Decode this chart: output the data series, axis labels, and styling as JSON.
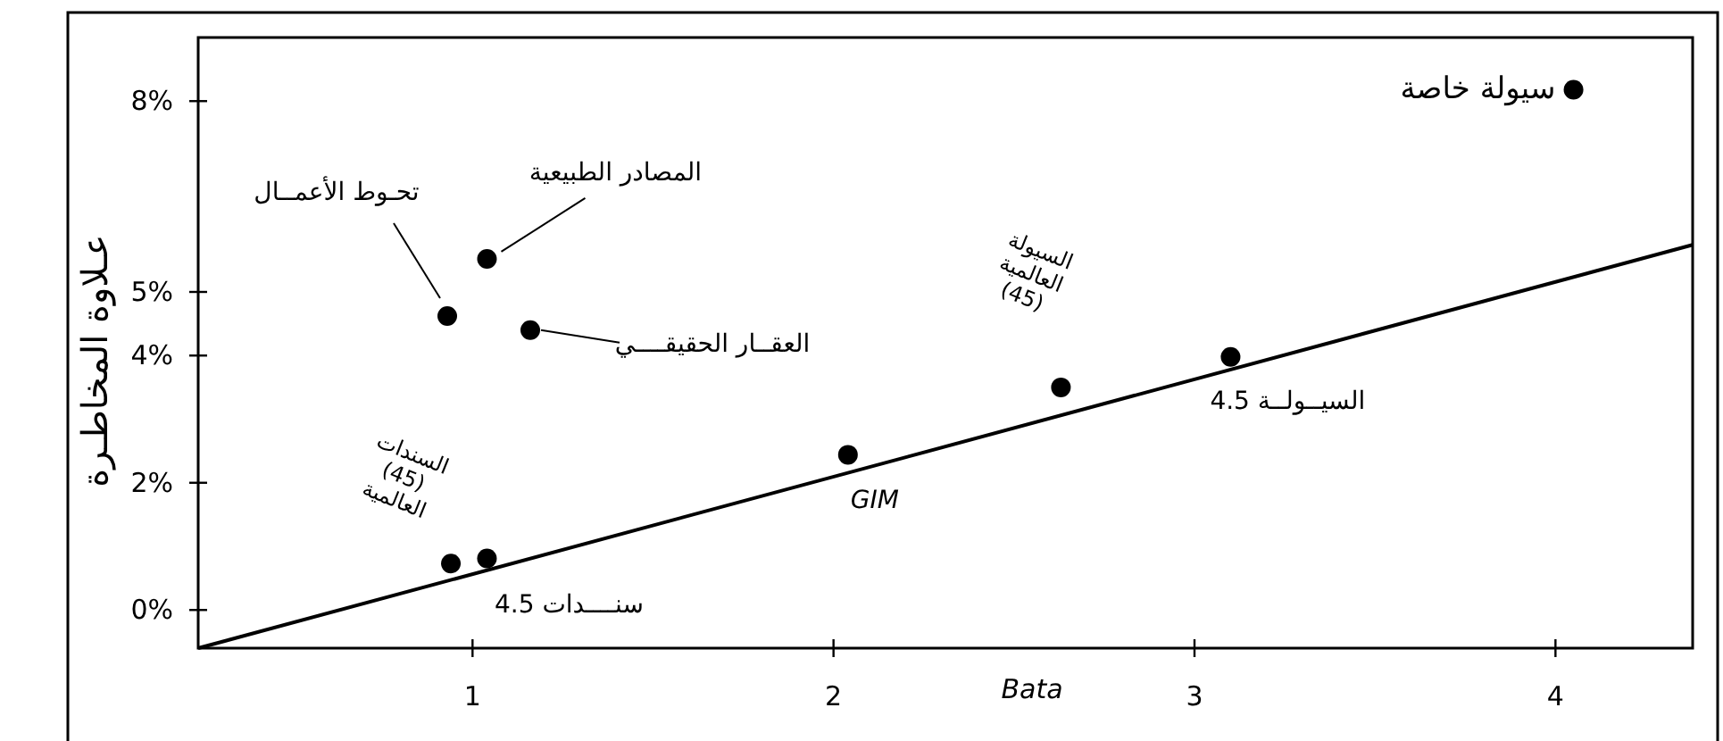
{
  "chart_data": {
    "type": "scatter",
    "xlabel": "Bata",
    "ylabel": "عـلاوة المخاطـرة",
    "xlim": [
      0.24,
      4.38
    ],
    "ylim": [
      -0.6,
      9.0
    ],
    "xticks": [
      1,
      2,
      3,
      4
    ],
    "yticks": [
      {
        "value": 0,
        "label": "0%"
      },
      {
        "value": 2,
        "label": "2%"
      },
      {
        "value": 4,
        "label": "4%"
      },
      {
        "value": 5,
        "label": "5%"
      },
      {
        "value": 8,
        "label": "8%"
      }
    ],
    "grid": false,
    "marker": "circle",
    "series": [
      {
        "type": "scatter",
        "color": "#000000",
        "x": [
          0.93,
          1.04,
          1.16,
          0.94,
          1.04,
          2.04,
          2.63,
          3.1,
          4.05
        ],
        "values": [
          4.62,
          5.52,
          4.4,
          0.73,
          0.81,
          2.44,
          3.5,
          3.98,
          8.18
        ]
      },
      {
        "type": "line",
        "color": "#000000",
        "line_style": "solid",
        "marker": "none",
        "x": [
          0.24,
          4.38
        ],
        "values": [
          -0.6,
          5.74
        ]
      }
    ],
    "annotations": [
      "تحـوط الأعمــال",
      {
        "text": "المصادر الطبيعية",
        "x": 1.04,
        "y": 5.52
      },
      {
        "text": "العقــار الحقيقــــي",
        "x": 1.16,
        "y": 4.4
      },
      "السندات\n(45)\nالعالمية",
      "سنــــدات 4.5",
      "GIM",
      "السيولة\nالعالمية\n(45)",
      "السيــولــة 4.5",
      "سيولة خاصة"
    ]
  }
}
